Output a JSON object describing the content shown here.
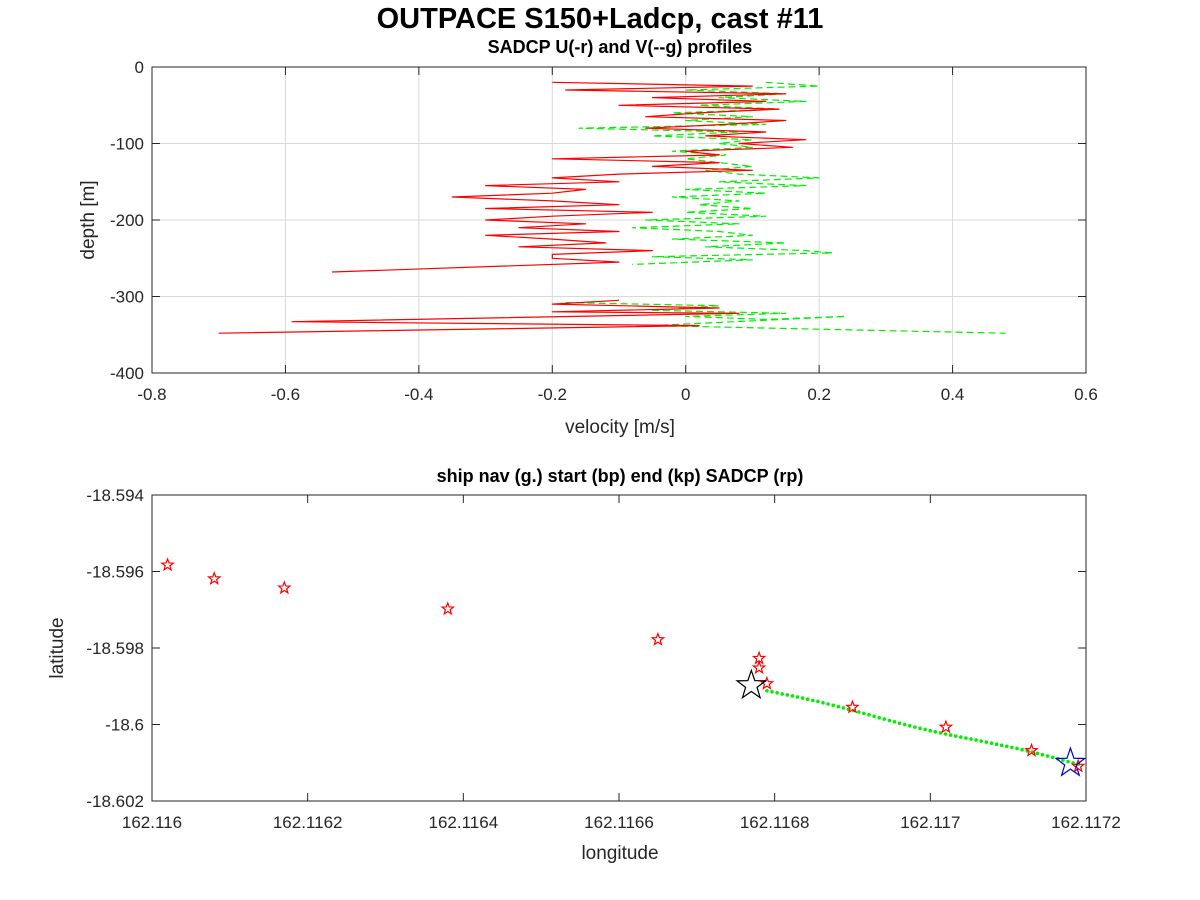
{
  "figure_title": "OUTPACE S150+Ladcp, cast #11",
  "colors": {
    "u_profile": "#ff0000",
    "v_profile": "#00ee00",
    "ship_nav": "#00ee00",
    "start_marker": "#0000cc",
    "end_marker": "#000000",
    "sadcp_marker": "#ff0000",
    "grid": "#d9d9d9",
    "axis": "#262626"
  },
  "chart_data": [
    {
      "type": "line",
      "title": "SADCP U(-r) and V(--g) profiles",
      "xlabel": "velocity [m/s]",
      "ylabel": "depth [m]",
      "xlim": [
        -0.8,
        0.6
      ],
      "ylim": [
        -400,
        0
      ],
      "xticks": [
        -0.8,
        -0.6,
        -0.4,
        -0.2,
        0,
        0.2,
        0.4,
        0.6
      ],
      "yticks": [
        -400,
        -300,
        -200,
        -100,
        0
      ],
      "grid": true,
      "series": [
        {
          "key": "U",
          "style": "solid",
          "color": "#ff0000",
          "points": [
            [
              -0.2,
              -20
            ],
            [
              0.1,
              -25
            ],
            [
              -0.18,
              -30
            ],
            [
              0.15,
              -35
            ],
            [
              -0.05,
              -40
            ],
            [
              0.12,
              -45
            ],
            [
              -0.1,
              -50
            ],
            [
              0.14,
              -55
            ],
            [
              0.02,
              -60
            ],
            [
              -0.06,
              -65
            ],
            [
              0.15,
              -70
            ],
            [
              0.06,
              -75
            ],
            [
              -0.06,
              -80
            ],
            [
              0.12,
              -85
            ],
            [
              0.03,
              -90
            ],
            [
              0.18,
              -95
            ],
            [
              0.08,
              -100
            ],
            [
              0.16,
              -105
            ],
            [
              0.0,
              -110
            ],
            [
              0.05,
              -115
            ],
            [
              -0.2,
              -120
            ],
            [
              0.05,
              -125
            ],
            [
              -0.05,
              -130
            ],
            [
              0.1,
              -135
            ],
            [
              -0.1,
              -140
            ],
            [
              -0.2,
              -145
            ],
            [
              -0.1,
              -150
            ],
            [
              -0.3,
              -155
            ],
            [
              -0.15,
              -160
            ],
            [
              -0.2,
              -165
            ],
            [
              -0.35,
              -170
            ],
            [
              -0.2,
              -175
            ],
            [
              -0.1,
              -180
            ],
            [
              -0.3,
              -185
            ],
            [
              -0.05,
              -190
            ],
            [
              -0.2,
              -195
            ],
            [
              -0.3,
              -200
            ],
            [
              -0.15,
              -205
            ],
            [
              -0.25,
              -210
            ],
            [
              -0.1,
              -215
            ],
            [
              -0.3,
              -220
            ],
            [
              -0.2,
              -225
            ],
            [
              -0.12,
              -230
            ],
            [
              -0.25,
              -235
            ],
            [
              -0.05,
              -240
            ],
            [
              -0.2,
              -245
            ],
            [
              -0.2,
              -250
            ],
            [
              -0.1,
              -255
            ],
            [
              -0.53,
              -268
            ]
          ]
        },
        {
          "key": "U-deep",
          "style": "solid",
          "color": "#ff0000",
          "points": [
            [
              -0.1,
              -305
            ],
            [
              -0.2,
              -310
            ],
            [
              0.05,
              -315
            ],
            [
              -0.2,
              -320
            ],
            [
              0.08,
              -322
            ],
            [
              -0.59,
              -333
            ],
            [
              0.02,
              -338
            ],
            [
              -0.7,
              -348
            ]
          ]
        },
        {
          "key": "V",
          "style": "dashed",
          "color": "#00ee00",
          "points": [
            [
              0.12,
              -20
            ],
            [
              0.2,
              -25
            ],
            [
              0.0,
              -30
            ],
            [
              0.15,
              -35
            ],
            [
              0.05,
              -40
            ],
            [
              0.18,
              -45
            ],
            [
              0.02,
              -50
            ],
            [
              0.14,
              -55
            ],
            [
              -0.02,
              -60
            ],
            [
              0.1,
              -65
            ],
            [
              0.0,
              -70
            ],
            [
              0.12,
              -75
            ],
            [
              -0.16,
              -80
            ],
            [
              0.08,
              -85
            ],
            [
              -0.05,
              -90
            ],
            [
              0.1,
              -95
            ],
            [
              0.05,
              -100
            ],
            [
              0.1,
              -105
            ],
            [
              -0.02,
              -110
            ],
            [
              0.06,
              -115
            ],
            [
              0.0,
              -120
            ],
            [
              0.05,
              -125
            ],
            [
              0.1,
              -130
            ],
            [
              0.03,
              -135
            ],
            [
              0.08,
              -140
            ],
            [
              0.2,
              -145
            ],
            [
              0.05,
              -150
            ],
            [
              0.18,
              -155
            ],
            [
              0.0,
              -160
            ],
            [
              0.12,
              -165
            ],
            [
              -0.02,
              -170
            ],
            [
              0.08,
              -175
            ],
            [
              0.02,
              -180
            ],
            [
              0.1,
              -185
            ],
            [
              0.0,
              -190
            ],
            [
              0.12,
              -195
            ],
            [
              -0.06,
              -200
            ],
            [
              0.08,
              -205
            ],
            [
              -0.08,
              -210
            ],
            [
              0.05,
              -215
            ],
            [
              0.1,
              -220
            ],
            [
              -0.02,
              -225
            ],
            [
              0.15,
              -230
            ],
            [
              0.03,
              -235
            ],
            [
              0.18,
              -240
            ],
            [
              0.22,
              -243
            ],
            [
              -0.05,
              -248
            ],
            [
              0.1,
              -252
            ],
            [
              -0.08,
              -258
            ]
          ]
        },
        {
          "key": "V-deep",
          "style": "dashed",
          "color": "#00ee00",
          "points": [
            [
              -0.18,
              -308
            ],
            [
              0.05,
              -312
            ],
            [
              -0.05,
              -318
            ],
            [
              0.15,
              -322
            ],
            [
              0.0,
              -326
            ],
            [
              0.12,
              -330
            ],
            [
              0.24,
              -326
            ],
            [
              -0.05,
              -338
            ],
            [
              0.48,
              -348
            ]
          ]
        }
      ]
    },
    {
      "type": "scatter",
      "title": "ship nav (g.) start (bp) end (kp) SADCP (rp)",
      "xlabel": "longitude",
      "ylabel": "latitude",
      "xlim": [
        162.116,
        162.1172
      ],
      "ylim": [
        -18.602,
        -18.594
      ],
      "xticks": [
        162.116,
        162.1162,
        162.1164,
        162.1166,
        162.1168,
        162.117,
        162.1172
      ],
      "xtick_labels": [
        "162.116",
        "162.1162",
        "162.1164",
        "162.1166",
        "162.1168",
        "162.117",
        "162.1172"
      ],
      "yticks": [
        -18.602,
        -18.6,
        -18.598,
        -18.596,
        -18.594
      ],
      "ytick_labels": [
        "-18.602",
        "-18.6",
        "-18.598",
        "-18.596",
        "-18.594"
      ],
      "grid": false,
      "ship_nav": {
        "x_start": 162.11679,
        "y_start": -18.59912,
        "x_end": 162.11719,
        "y_end": -18.60104,
        "n_points": 62
      },
      "start_point": [
        162.11718,
        -18.60101
      ],
      "end_point": [
        162.11677,
        -18.59898
      ],
      "sadcp_points": [
        [
          162.11602,
          -18.59583
        ],
        [
          162.11608,
          -18.59619
        ],
        [
          162.11617,
          -18.59643
        ],
        [
          162.11638,
          -18.59698
        ],
        [
          162.11665,
          -18.59778
        ],
        [
          162.11678,
          -18.59827
        ],
        [
          162.11678,
          -18.59852
        ],
        [
          162.11679,
          -18.59893
        ],
        [
          162.1169,
          -18.59955
        ],
        [
          162.11702,
          -18.60007
        ],
        [
          162.11713,
          -18.60068
        ],
        [
          162.11719,
          -18.60109
        ]
      ]
    }
  ]
}
